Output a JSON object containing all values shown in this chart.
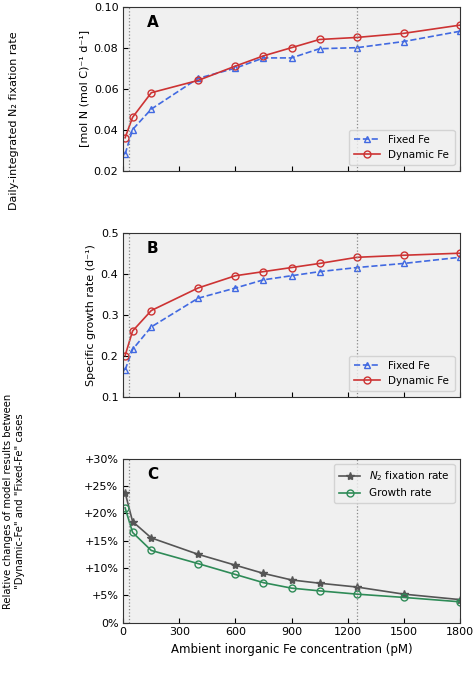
{
  "x": [
    10,
    50,
    150,
    400,
    600,
    750,
    900,
    1050,
    1250,
    1500,
    1800
  ],
  "panel_A": {
    "fixed_fe": [
      0.028,
      0.04,
      0.05,
      0.065,
      0.07,
      0.075,
      0.075,
      0.0795,
      0.08,
      0.083,
      0.088
    ],
    "dynamic_fe": [
      0.036,
      0.046,
      0.058,
      0.064,
      0.071,
      0.076,
      0.08,
      0.084,
      0.085,
      0.087,
      0.091
    ],
    "ylabel_inner": "[mol N (mol C)⁻¹ d⁻¹]",
    "ylabel_outer": "Daily-integrated N₂ fixation rate",
    "ylim": [
      0.02,
      0.1
    ],
    "yticks": [
      0.02,
      0.04,
      0.06,
      0.08,
      0.1
    ],
    "label": "A"
  },
  "panel_B": {
    "fixed_fe": [
      0.165,
      0.215,
      0.27,
      0.34,
      0.365,
      0.385,
      0.395,
      0.405,
      0.415,
      0.425,
      0.44
    ],
    "dynamic_fe": [
      0.2,
      0.26,
      0.31,
      0.365,
      0.395,
      0.405,
      0.415,
      0.425,
      0.44,
      0.445,
      0.45
    ],
    "ylabel": "Specific growth rate (d⁻¹)",
    "ylim": [
      0.1,
      0.5
    ],
    "yticks": [
      0.1,
      0.2,
      0.3,
      0.4,
      0.5
    ],
    "label": "B"
  },
  "panel_C": {
    "n2_fix": [
      0.238,
      0.185,
      0.155,
      0.125,
      0.105,
      0.09,
      0.078,
      0.072,
      0.065,
      0.052,
      0.042
    ],
    "growth": [
      0.21,
      0.165,
      0.132,
      0.108,
      0.088,
      0.073,
      0.063,
      0.058,
      0.052,
      0.046,
      0.038
    ],
    "ylabel_line1": "Relative changes of model results between",
    "ylabel_line2": "\"Dynamic-Fe\" and \"Fixed-Fe\" cases",
    "ylim": [
      0.0,
      0.3
    ],
    "yticks": [
      0.0,
      0.05,
      0.1,
      0.15,
      0.2,
      0.25,
      0.3
    ],
    "ytick_labels": [
      "0%",
      "+5%",
      "+10%",
      "+15%",
      "+20%",
      "+25%",
      "+30%"
    ],
    "label": "C"
  },
  "xlabel": "Ambient inorganic Fe concentration (pM)",
  "xticks": [
    0,
    300,
    600,
    900,
    1200,
    1500,
    1800
  ],
  "xlim": [
    0,
    1800
  ],
  "vlines": [
    30,
    1250
  ],
  "fixed_fe_color": "#4169E1",
  "dynamic_fe_color": "#CD3333",
  "n2_fix_color": "#555555",
  "growth_color": "#2E8B57",
  "background_color": "#f0f0f0"
}
